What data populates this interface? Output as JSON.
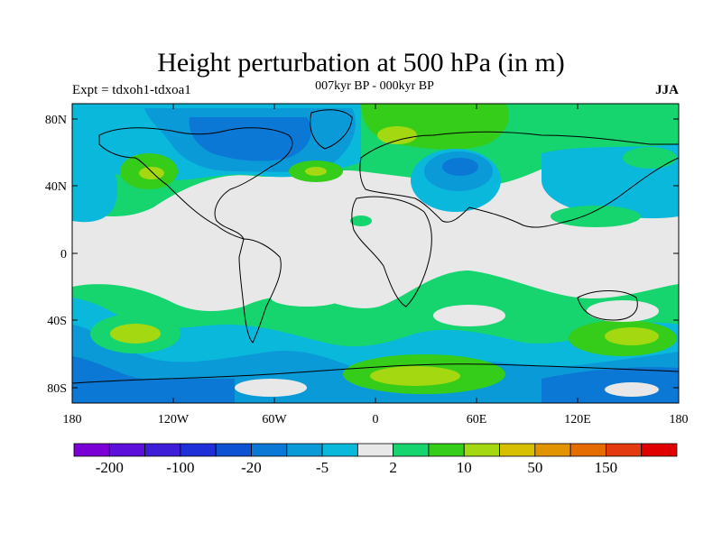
{
  "title": "Height perturbation at 500 hPa (in m)",
  "subtitle": "007kyr BP - 000kyr BP",
  "experiment": "Expt = tdxoh1-tdxoa1",
  "season": "JJA",
  "map": {
    "lat_ticks": [
      "80N",
      "40N",
      "0",
      "40S",
      "80S"
    ],
    "lon_ticks": [
      "180",
      "120W",
      "60W",
      "0",
      "60E",
      "120E",
      "180"
    ],
    "background_color": "#e8e8e8"
  },
  "colorbar": {
    "colors": [
      "#7b00d6",
      "#5c10d9",
      "#3f1ed8",
      "#2030d8",
      "#0c52d2",
      "#0a78d4",
      "#0a9ad8",
      "#0ab8dc",
      "#e8e8e8",
      "#16d46e",
      "#36cc1a",
      "#a4d810",
      "#d6c000",
      "#e29400",
      "#e46c00",
      "#e43a10",
      "#e00000"
    ],
    "labels": [
      "-200",
      "-100",
      "-20",
      "-5",
      "2",
      "10",
      "50",
      "150"
    ]
  }
}
